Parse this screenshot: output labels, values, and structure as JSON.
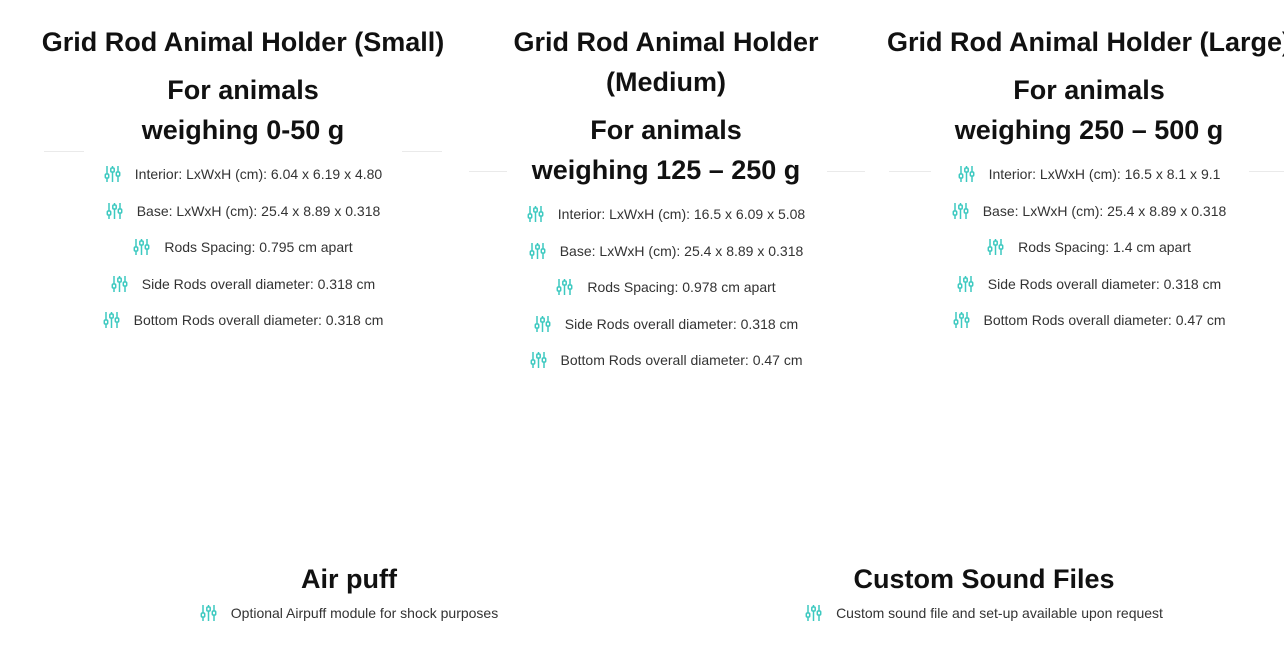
{
  "accent_color": "#3cc9c0",
  "bullet_icon": "sliders-icon",
  "products": [
    {
      "title": "Grid Rod Animal Holder (Small)",
      "subtitle": "For animals weighing 0-50 g",
      "specs": [
        "Interior:  LxWxH (cm): 6.04 x 6.19  x 4.80",
        "Base: LxWxH (cm):  25.4 x 8.89 x 0.318",
        "Rods Spacing: 0.795 cm apart",
        "Side Rods overall diameter: 0.318 cm",
        "Bottom Rods overall diameter: 0.318 cm"
      ]
    },
    {
      "title": "Grid Rod Animal Holder (Medium)",
      "subtitle": "For animals weighing 125 – 250 g",
      "specs": [
        "Interior:  LxWxH (cm): 16.5 x 6.09  x 5.08",
        "Base: LxWxH (cm):  25.4 x 8.89 x 0.318",
        "Rods Spacing: 0.978 cm apart",
        "Side Rods overall diameter: 0.318 cm",
        "Bottom Rods overall diameter: 0.47 cm"
      ]
    },
    {
      "title": "Grid Rod Animal Holder (Large)",
      "subtitle": "For animals weighing 250 – 500 g",
      "specs": [
        "Interior:  LxWxH (cm): 16.5 x 8.1  x 9.1",
        "Base: LxWxH (cm):  25.4 x 8.89 x 0.318",
        "Rods Spacing: 1.4 cm apart",
        "Side Rods overall diameter: 0.318 cm",
        "Bottom Rods overall diameter: 0.47 cm"
      ]
    }
  ],
  "features": [
    {
      "title": "Air puff",
      "text": "Optional Airpuff module for shock purposes"
    },
    {
      "title": "Custom Sound Files",
      "text": "Custom sound file and set-up available upon request"
    }
  ]
}
